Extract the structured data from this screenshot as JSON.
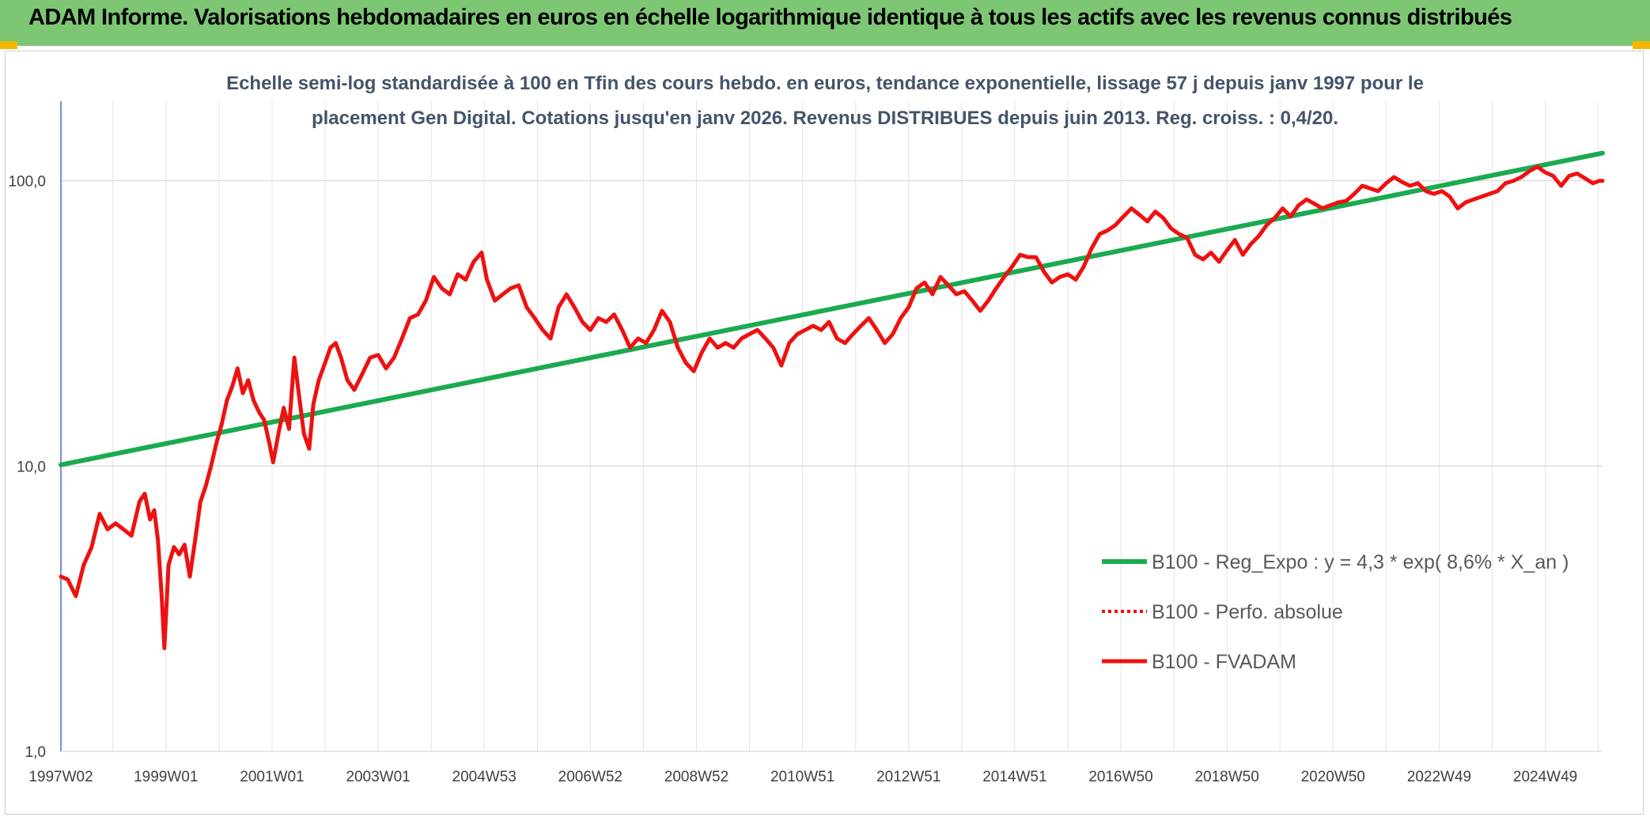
{
  "banner": {
    "title": "ADAM Informe. Valorisations hebdomadaires en euros en échelle logarithmique identique à tous les actifs avec les revenus connus distribués"
  },
  "colors": {
    "banner": "#7dc774",
    "regression": "#1aaa50",
    "perf": "#ff0000",
    "fvadam": "#ee1111",
    "axis": "#4472c4",
    "grid": "#d9d9d9"
  },
  "chart_data": {
    "type": "line",
    "yscale": "log",
    "ylim": [
      1,
      190
    ],
    "title_lines": [
      "Echelle semi-log standardisée à 100 en Tfin des cours hebdo. en euros, tendance exponentielle, lissage 57 j depuis janv 1997 pour le",
      "placement Gen Digital. Cotations jusqu'en janv 2026. Revenus DISTRIBUES depuis juin 2013. Reg. croiss. : 0,4/20."
    ],
    "y_ticks": [
      {
        "value": 1,
        "label": "1,0"
      },
      {
        "value": 10,
        "label": "10,0"
      },
      {
        "value": 100,
        "label": "100,0"
      }
    ],
    "x_range": [
      1997.02,
      2026.08
    ],
    "x_ticks": [
      {
        "x": 1997.02,
        "label": "1997W02"
      },
      {
        "x": 1999.0,
        "label": "1999W01"
      },
      {
        "x": 2001.0,
        "label": "2001W01"
      },
      {
        "x": 2003.0,
        "label": "2003W01"
      },
      {
        "x": 2005.0,
        "label": "2004W53"
      },
      {
        "x": 2007.0,
        "label": "2006W52"
      },
      {
        "x": 2009.0,
        "label": "2008W52"
      },
      {
        "x": 2011.0,
        "label": "2010W51"
      },
      {
        "x": 2013.0,
        "label": "2012W51"
      },
      {
        "x": 2015.0,
        "label": "2014W51"
      },
      {
        "x": 2017.0,
        "label": "2016W50"
      },
      {
        "x": 2019.0,
        "label": "2018W50"
      },
      {
        "x": 2021.0,
        "label": "2020W50"
      },
      {
        "x": 2023.0,
        "label": "2022W49"
      },
      {
        "x": 2025.0,
        "label": "2024W49"
      }
    ],
    "series": [
      {
        "name": "B100 - Reg_Expo : y = 4,3 * exp( 8,6% *  X_an )",
        "style": "solid-green",
        "points": [
          [
            1997.02,
            10.1
          ],
          [
            2026.08,
            125
          ]
        ]
      },
      {
        "name": "B100 - Perfo. absolue",
        "style": "dotted-red",
        "points": []
      },
      {
        "name": "B100 - FVADAM",
        "style": "solid-red",
        "points": [
          [
            1997.02,
            4.1
          ],
          [
            1997.15,
            4.0
          ],
          [
            1997.3,
            3.5
          ],
          [
            1997.45,
            4.5
          ],
          [
            1997.6,
            5.2
          ],
          [
            1997.75,
            6.8
          ],
          [
            1997.9,
            6.0
          ],
          [
            1998.05,
            6.3
          ],
          [
            1998.2,
            6.0
          ],
          [
            1998.35,
            5.7
          ],
          [
            1998.5,
            7.5
          ],
          [
            1998.6,
            8.0
          ],
          [
            1998.7,
            6.5
          ],
          [
            1998.78,
            7.0
          ],
          [
            1998.85,
            5.5
          ],
          [
            1998.92,
            3.5
          ],
          [
            1998.97,
            2.3
          ],
          [
            1999.05,
            4.5
          ],
          [
            1999.15,
            5.2
          ],
          [
            1999.25,
            4.9
          ],
          [
            1999.35,
            5.3
          ],
          [
            1999.45,
            4.1
          ],
          [
            1999.55,
            5.5
          ],
          [
            1999.65,
            7.5
          ],
          [
            1999.75,
            8.5
          ],
          [
            1999.85,
            10.0
          ],
          [
            1999.95,
            12.0
          ],
          [
            2000.05,
            14.0
          ],
          [
            2000.15,
            17.0
          ],
          [
            2000.25,
            19.0
          ],
          [
            2000.35,
            22.0
          ],
          [
            2000.45,
            18.0
          ],
          [
            2000.55,
            20.0
          ],
          [
            2000.65,
            17.0
          ],
          [
            2000.75,
            15.5
          ],
          [
            2000.85,
            14.5
          ],
          [
            2000.95,
            12.0
          ],
          [
            2001.02,
            10.3
          ],
          [
            2001.12,
            13.0
          ],
          [
            2001.22,
            16.0
          ],
          [
            2001.32,
            13.5
          ],
          [
            2001.42,
            24.0
          ],
          [
            2001.52,
            17.0
          ],
          [
            2001.6,
            13.0
          ],
          [
            2001.7,
            11.5
          ],
          [
            2001.78,
            16.5
          ],
          [
            2001.88,
            20.0
          ],
          [
            2002.0,
            23.0
          ],
          [
            2002.1,
            26.0
          ],
          [
            2002.2,
            27.0
          ],
          [
            2002.3,
            24.0
          ],
          [
            2002.42,
            20.0
          ],
          [
            2002.55,
            18.5
          ],
          [
            2002.7,
            21.0
          ],
          [
            2002.85,
            24.0
          ],
          [
            2003.0,
            24.5
          ],
          [
            2003.15,
            22.0
          ],
          [
            2003.3,
            24.0
          ],
          [
            2003.45,
            28.0
          ],
          [
            2003.6,
            33.0
          ],
          [
            2003.75,
            34.0
          ],
          [
            2003.9,
            38.0
          ],
          [
            2004.05,
            46.0
          ],
          [
            2004.2,
            42.0
          ],
          [
            2004.35,
            40.0
          ],
          [
            2004.5,
            47.0
          ],
          [
            2004.65,
            45.0
          ],
          [
            2004.8,
            52.0
          ],
          [
            2004.95,
            56.0
          ],
          [
            2005.05,
            45.0
          ],
          [
            2005.2,
            38.0
          ],
          [
            2005.35,
            40.0
          ],
          [
            2005.5,
            42.0
          ],
          [
            2005.65,
            43.0
          ],
          [
            2005.8,
            36.0
          ],
          [
            2005.95,
            33.0
          ],
          [
            2006.1,
            30.0
          ],
          [
            2006.25,
            28.0
          ],
          [
            2006.4,
            36.0
          ],
          [
            2006.55,
            40.0
          ],
          [
            2006.7,
            36.0
          ],
          [
            2006.85,
            32.0
          ],
          [
            2007.0,
            30.0
          ],
          [
            2007.15,
            33.0
          ],
          [
            2007.3,
            32.0
          ],
          [
            2007.45,
            34.0
          ],
          [
            2007.6,
            30.0
          ],
          [
            2007.75,
            26.0
          ],
          [
            2007.9,
            28.0
          ],
          [
            2008.05,
            27.0
          ],
          [
            2008.2,
            30.0
          ],
          [
            2008.35,
            35.0
          ],
          [
            2008.5,
            32.0
          ],
          [
            2008.65,
            26.0
          ],
          [
            2008.8,
            23.0
          ],
          [
            2008.95,
            21.5
          ],
          [
            2009.1,
            25.0
          ],
          [
            2009.25,
            28.0
          ],
          [
            2009.4,
            26.0
          ],
          [
            2009.55,
            27.0
          ],
          [
            2009.7,
            26.0
          ],
          [
            2009.85,
            28.0
          ],
          [
            2010.0,
            29.0
          ],
          [
            2010.15,
            30.0
          ],
          [
            2010.3,
            28.0
          ],
          [
            2010.45,
            26.0
          ],
          [
            2010.6,
            22.5
          ],
          [
            2010.75,
            27.0
          ],
          [
            2010.9,
            29.0
          ],
          [
            2011.05,
            30.0
          ],
          [
            2011.2,
            31.0
          ],
          [
            2011.35,
            30.0
          ],
          [
            2011.5,
            32.0
          ],
          [
            2011.65,
            28.0
          ],
          [
            2011.8,
            27.0
          ],
          [
            2011.95,
            29.0
          ],
          [
            2012.1,
            31.0
          ],
          [
            2012.25,
            33.0
          ],
          [
            2012.4,
            30.0
          ],
          [
            2012.55,
            27.0
          ],
          [
            2012.7,
            29.0
          ],
          [
            2012.85,
            33.0
          ],
          [
            2013.0,
            36.0
          ],
          [
            2013.15,
            42.0
          ],
          [
            2013.3,
            44.0
          ],
          [
            2013.45,
            40.0
          ],
          [
            2013.6,
            46.0
          ],
          [
            2013.75,
            43.0
          ],
          [
            2013.9,
            40.0
          ],
          [
            2014.05,
            41.0
          ],
          [
            2014.2,
            38.0
          ],
          [
            2014.35,
            35.0
          ],
          [
            2014.5,
            38.0
          ],
          [
            2014.65,
            42.0
          ],
          [
            2014.8,
            46.0
          ],
          [
            2014.95,
            50.0
          ],
          [
            2015.1,
            55.0
          ],
          [
            2015.25,
            54.0
          ],
          [
            2015.4,
            54.0
          ],
          [
            2015.55,
            48.0
          ],
          [
            2015.7,
            44.0
          ],
          [
            2015.85,
            46.0
          ],
          [
            2016.0,
            47.0
          ],
          [
            2016.15,
            45.0
          ],
          [
            2016.3,
            50.0
          ],
          [
            2016.45,
            58.0
          ],
          [
            2016.6,
            65.0
          ],
          [
            2016.75,
            67.0
          ],
          [
            2016.9,
            70.0
          ],
          [
            2017.05,
            75.0
          ],
          [
            2017.2,
            80.0
          ],
          [
            2017.35,
            76.0
          ],
          [
            2017.5,
            72.0
          ],
          [
            2017.65,
            78.0
          ],
          [
            2017.8,
            74.0
          ],
          [
            2017.95,
            68.0
          ],
          [
            2018.1,
            65.0
          ],
          [
            2018.25,
            63.0
          ],
          [
            2018.4,
            55.0
          ],
          [
            2018.55,
            53.0
          ],
          [
            2018.7,
            56.0
          ],
          [
            2018.85,
            52.0
          ],
          [
            2019.0,
            57.0
          ],
          [
            2019.15,
            62.0
          ],
          [
            2019.3,
            55.0
          ],
          [
            2019.45,
            60.0
          ],
          [
            2019.6,
            64.0
          ],
          [
            2019.75,
            70.0
          ],
          [
            2019.9,
            74.0
          ],
          [
            2020.05,
            80.0
          ],
          [
            2020.2,
            75.0
          ],
          [
            2020.35,
            82.0
          ],
          [
            2020.5,
            86.0
          ],
          [
            2020.65,
            83.0
          ],
          [
            2020.8,
            80.0
          ],
          [
            2020.95,
            82.0
          ],
          [
            2021.1,
            84.0
          ],
          [
            2021.25,
            85.0
          ],
          [
            2021.4,
            90.0
          ],
          [
            2021.55,
            96.0
          ],
          [
            2021.7,
            94.0
          ],
          [
            2021.85,
            92.0
          ],
          [
            2022.0,
            98.0
          ],
          [
            2022.15,
            103.0
          ],
          [
            2022.3,
            99.0
          ],
          [
            2022.45,
            96.0
          ],
          [
            2022.6,
            98.0
          ],
          [
            2022.75,
            92.0
          ],
          [
            2022.9,
            90.0
          ],
          [
            2023.05,
            92.0
          ],
          [
            2023.2,
            88.0
          ],
          [
            2023.35,
            80.0
          ],
          [
            2023.5,
            84.0
          ],
          [
            2023.65,
            86.0
          ],
          [
            2023.8,
            88.0
          ],
          [
            2023.95,
            90.0
          ],
          [
            2024.1,
            92.0
          ],
          [
            2024.25,
            98.0
          ],
          [
            2024.4,
            100.0
          ],
          [
            2024.55,
            103.0
          ],
          [
            2024.7,
            108.0
          ],
          [
            2024.85,
            112.0
          ],
          [
            2025.0,
            107.0
          ],
          [
            2025.15,
            104.0
          ],
          [
            2025.3,
            96.0
          ],
          [
            2025.45,
            104.0
          ],
          [
            2025.6,
            106.0
          ],
          [
            2025.75,
            102.0
          ],
          [
            2025.9,
            98.0
          ],
          [
            2026.02,
            100.0
          ],
          [
            2026.08,
            100.0
          ]
        ]
      }
    ]
  }
}
